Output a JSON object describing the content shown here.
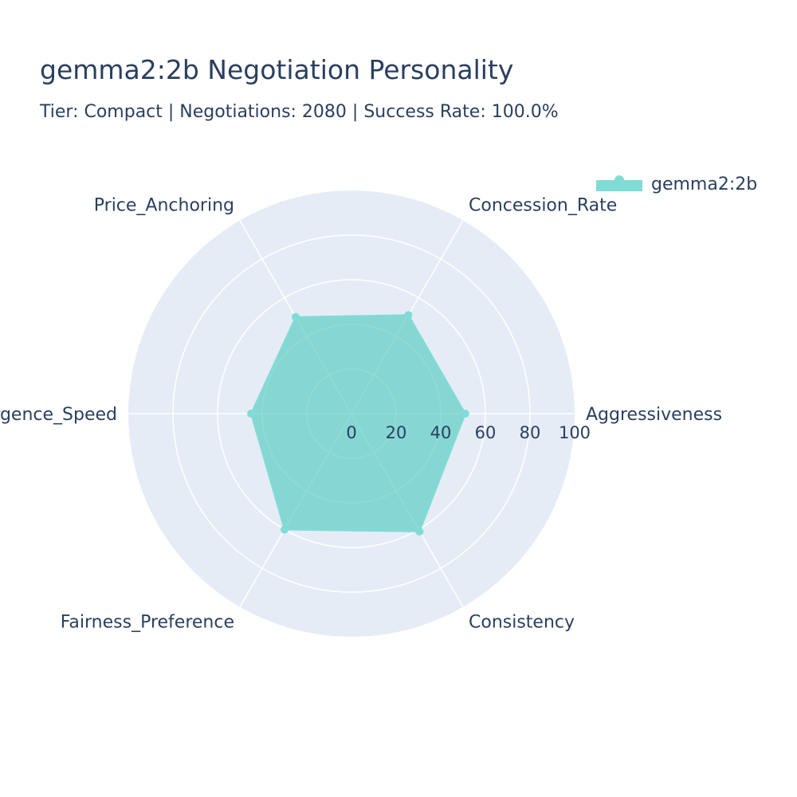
{
  "colors": {
    "polar_bg": "#e5ecf6",
    "grid": "#ffffff",
    "series_fill": "#5ecfc5",
    "series_line": "#80dcd4",
    "text": "#2a3f5f"
  },
  "chart_data": {
    "type": "radar",
    "title": "gemma2:2b Negotiation Personality",
    "subtitle": "Tier: Compact | Negotiations: 2080 | Success Rate: 100.0%",
    "axes": [
      "Aggressiveness",
      "Concession_Rate",
      "Price_Anchoring",
      "Convergence_Speed",
      "Fairness_Preference",
      "Consistency"
    ],
    "radial_range": [
      0,
      100
    ],
    "radial_ticks": [
      0,
      20,
      40,
      60,
      80,
      100
    ],
    "grid": true,
    "legend_position": "top-right",
    "series": [
      {
        "name": "gemma2:2b",
        "values": [
          51,
          51,
          50,
          45,
          60,
          61
        ]
      }
    ]
  }
}
